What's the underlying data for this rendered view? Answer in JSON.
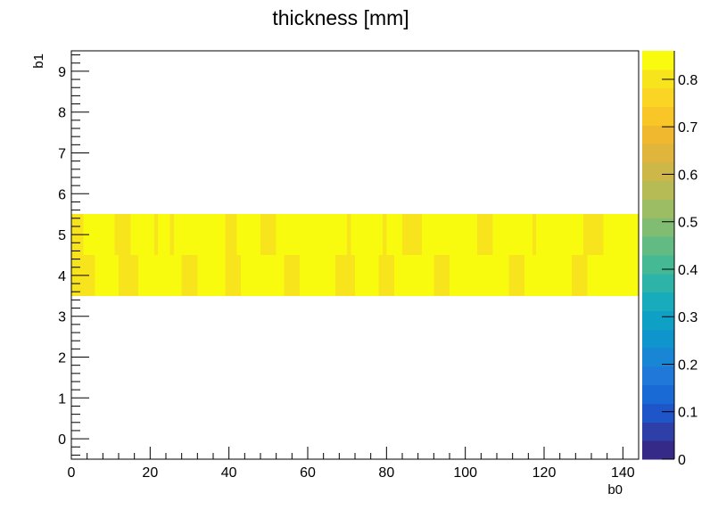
{
  "chart_data": {
    "type": "heatmap",
    "title": "thickness [mm]",
    "xlabel": "b0",
    "ylabel": "b1",
    "xlim": [
      0,
      144
    ],
    "ylim": [
      -0.5,
      9.5
    ],
    "x_ticks": [
      "0",
      "20",
      "40",
      "60",
      "80",
      "100",
      "120",
      "140"
    ],
    "y_ticks": [
      "0",
      "1",
      "2",
      "3",
      "4",
      "5",
      "6",
      "7",
      "8",
      "9"
    ],
    "colorbar": {
      "range": [
        0,
        0.86
      ],
      "ticks": [
        "0",
        "0.1",
        "0.2",
        "0.3",
        "0.4",
        "0.5",
        "0.6",
        "0.7",
        "0.8"
      ],
      "palette": [
        "#352a87",
        "#2f3fa8",
        "#1e55c8",
        "#1a6ad5",
        "#2078d8",
        "#1886d4",
        "#1094cc",
        "#0fa0c5",
        "#18abbb",
        "#2eb3a8",
        "#45b894",
        "#62bb82",
        "#80bd72",
        "#9cbd63",
        "#b6bb55",
        "#cdb748",
        "#e0b53b",
        "#f0b82f",
        "#f9c627",
        "#fad523",
        "#f8e41d",
        "#f9fb0e"
      ]
    },
    "rows": [
      {
        "b1_from": 3.5,
        "b1_to": 4.5,
        "segments": [
          {
            "x0": 0,
            "x1": 6,
            "value": 0.79
          },
          {
            "x0": 6,
            "x1": 12,
            "value": 0.86
          },
          {
            "x0": 12,
            "x1": 17,
            "value": 0.79
          },
          {
            "x0": 17,
            "x1": 28,
            "value": 0.86
          },
          {
            "x0": 28,
            "x1": 32,
            "value": 0.8
          },
          {
            "x0": 32,
            "x1": 39,
            "value": 0.86
          },
          {
            "x0": 39,
            "x1": 43,
            "value": 0.8
          },
          {
            "x0": 43,
            "x1": 54,
            "value": 0.86
          },
          {
            "x0": 54,
            "x1": 58,
            "value": 0.8
          },
          {
            "x0": 58,
            "x1": 67,
            "value": 0.86
          },
          {
            "x0": 67,
            "x1": 72,
            "value": 0.79
          },
          {
            "x0": 72,
            "x1": 78,
            "value": 0.86
          },
          {
            "x0": 78,
            "x1": 82,
            "value": 0.8
          },
          {
            "x0": 82,
            "x1": 92,
            "value": 0.86
          },
          {
            "x0": 92,
            "x1": 96,
            "value": 0.8
          },
          {
            "x0": 96,
            "x1": 111,
            "value": 0.86
          },
          {
            "x0": 111,
            "x1": 115,
            "value": 0.8
          },
          {
            "x0": 115,
            "x1": 127,
            "value": 0.86
          },
          {
            "x0": 127,
            "x1": 131,
            "value": 0.79
          },
          {
            "x0": 131,
            "x1": 144,
            "value": 0.86
          }
        ]
      },
      {
        "b1_from": 4.5,
        "b1_to": 5.5,
        "segments": [
          {
            "x0": 0,
            "x1": 3,
            "value": 0.79
          },
          {
            "x0": 3,
            "x1": 11,
            "value": 0.86
          },
          {
            "x0": 11,
            "x1": 15,
            "value": 0.8
          },
          {
            "x0": 15,
            "x1": 21,
            "value": 0.86
          },
          {
            "x0": 21,
            "x1": 22,
            "value": 0.8
          },
          {
            "x0": 22,
            "x1": 25,
            "value": 0.86
          },
          {
            "x0": 25,
            "x1": 26,
            "value": 0.8
          },
          {
            "x0": 26,
            "x1": 39,
            "value": 0.86
          },
          {
            "x0": 39,
            "x1": 42,
            "value": 0.8
          },
          {
            "x0": 42,
            "x1": 48,
            "value": 0.86
          },
          {
            "x0": 48,
            "x1": 52,
            "value": 0.8
          },
          {
            "x0": 52,
            "x1": 70,
            "value": 0.86
          },
          {
            "x0": 70,
            "x1": 71,
            "value": 0.8
          },
          {
            "x0": 71,
            "x1": 79,
            "value": 0.86
          },
          {
            "x0": 79,
            "x1": 80,
            "value": 0.8
          },
          {
            "x0": 80,
            "x1": 84,
            "value": 0.86
          },
          {
            "x0": 84,
            "x1": 89,
            "value": 0.8
          },
          {
            "x0": 89,
            "x1": 103,
            "value": 0.86
          },
          {
            "x0": 103,
            "x1": 107,
            "value": 0.8
          },
          {
            "x0": 107,
            "x1": 117,
            "value": 0.86
          },
          {
            "x0": 117,
            "x1": 118,
            "value": 0.8
          },
          {
            "x0": 118,
            "x1": 130,
            "value": 0.86
          },
          {
            "x0": 130,
            "x1": 135,
            "value": 0.8
          },
          {
            "x0": 135,
            "x1": 144,
            "value": 0.86
          }
        ]
      }
    ]
  }
}
